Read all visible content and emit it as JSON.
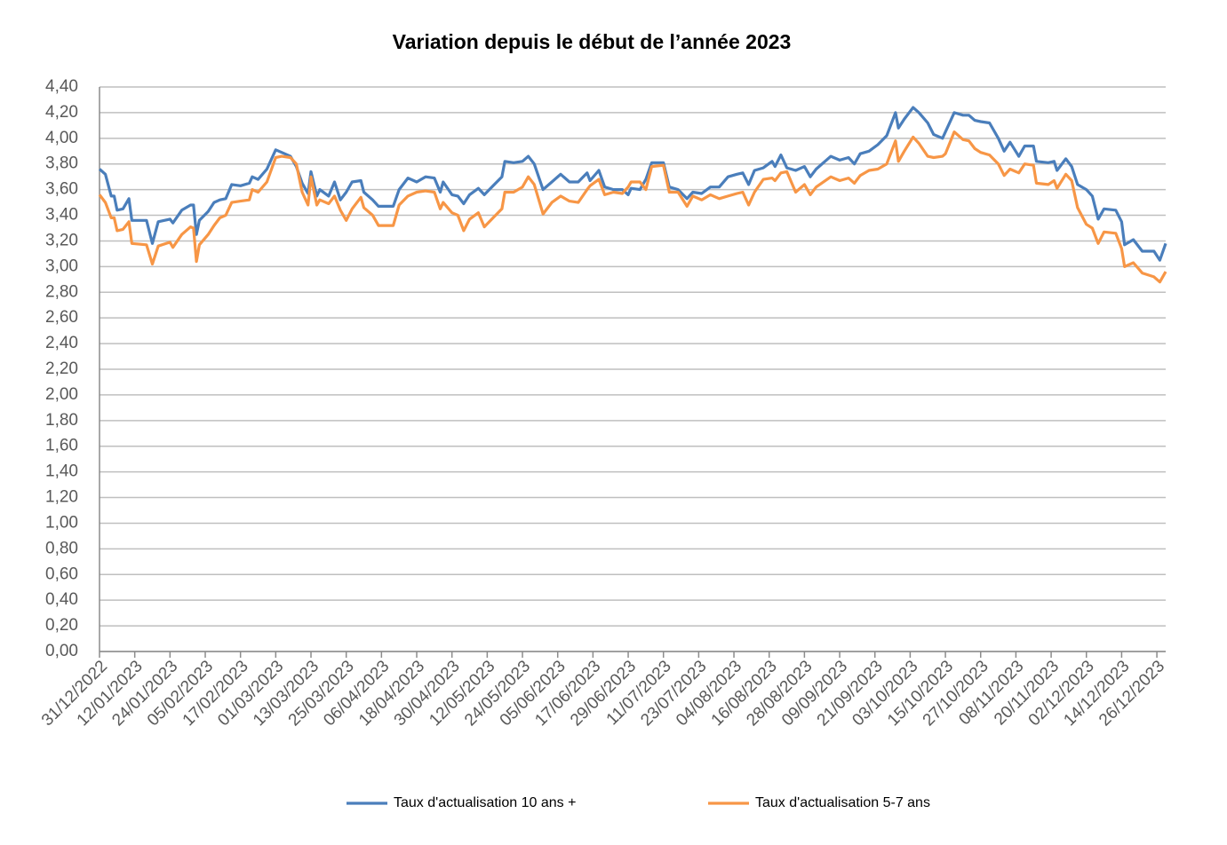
{
  "chart_data": {
    "type": "line",
    "title": "Variation depuis le début de l’année 2023",
    "x": [
      "31/12/2022",
      "02/01/2023",
      "04/01/2023",
      "05/01/2023",
      "06/01/2023",
      "08/01/2023",
      "10/01/2023",
      "11/01/2023",
      "16/01/2023",
      "18/01/2023",
      "20/01/2023",
      "24/01/2023",
      "25/01/2023",
      "28/01/2023",
      "31/01/2023",
      "01/02/2023",
      "02/02/2023",
      "03/02/2023",
      "06/02/2023",
      "08/02/2023",
      "10/02/2023",
      "12/02/2023",
      "14/02/2023",
      "17/02/2023",
      "20/02/2023",
      "21/02/2023",
      "23/02/2023",
      "26/02/2023",
      "01/03/2023",
      "03/03/2023",
      "06/03/2023",
      "08/03/2023",
      "10/03/2023",
      "12/03/2023",
      "13/03/2023",
      "15/03/2023",
      "16/03/2023",
      "19/03/2023",
      "21/03/2023",
      "23/03/2023",
      "25/03/2023",
      "27/03/2023",
      "30/03/2023",
      "31/03/2023",
      "03/04/2023",
      "05/04/2023",
      "10/04/2023",
      "12/04/2023",
      "15/04/2023",
      "18/04/2023",
      "21/04/2023",
      "24/04/2023",
      "26/04/2023",
      "27/04/2023",
      "30/04/2023",
      "02/05/2023",
      "04/05/2023",
      "06/05/2023",
      "09/05/2023",
      "11/05/2023",
      "14/05/2023",
      "17/05/2023",
      "18/05/2023",
      "21/05/2023",
      "24/05/2023",
      "26/05/2023",
      "28/05/2023",
      "31/05/2023",
      "03/06/2023",
      "06/06/2023",
      "09/06/2023",
      "12/06/2023",
      "15/06/2023",
      "16/06/2023",
      "19/06/2023",
      "21/06/2023",
      "24/06/2023",
      "27/06/2023",
      "29/06/2023",
      "30/06/2023",
      "03/07/2023",
      "05/07/2023",
      "07/07/2023",
      "11/07/2023",
      "13/07/2023",
      "16/07/2023",
      "19/07/2023",
      "21/07/2023",
      "24/07/2023",
      "27/07/2023",
      "30/07/2023",
      "02/08/2023",
      "05/08/2023",
      "07/08/2023",
      "09/08/2023",
      "11/08/2023",
      "14/08/2023",
      "17/08/2023",
      "18/08/2023",
      "20/08/2023",
      "22/08/2023",
      "25/08/2023",
      "28/08/2023",
      "30/08/2023",
      "01/09/2023",
      "06/09/2023",
      "09/09/2023",
      "12/09/2023",
      "14/09/2023",
      "16/09/2023",
      "19/09/2023",
      "22/09/2023",
      "25/09/2023",
      "28/09/2023",
      "29/09/2023",
      "01/10/2023",
      "04/10/2023",
      "06/10/2023",
      "09/10/2023",
      "11/10/2023",
      "14/10/2023",
      "15/10/2023",
      "18/10/2023",
      "21/10/2023",
      "23/10/2023",
      "25/10/2023",
      "27/10/2023",
      "30/10/2023",
      "02/11/2023",
      "04/11/2023",
      "06/11/2023",
      "09/11/2023",
      "11/11/2023",
      "14/11/2023",
      "15/11/2023",
      "19/11/2023",
      "21/11/2023",
      "22/11/2023",
      "25/11/2023",
      "27/11/2023",
      "29/11/2023",
      "02/12/2023",
      "04/12/2023",
      "06/12/2023",
      "08/12/2023",
      "12/12/2023",
      "14/12/2023",
      "15/12/2023",
      "18/12/2023",
      "21/12/2023",
      "25/12/2023",
      "27/12/2023",
      "29/12/2023"
    ],
    "series": [
      {
        "name": "Taux d'actualisation 10 ans +",
        "color": "#4a7ebb",
        "values": [
          3.76,
          3.72,
          3.55,
          3.55,
          3.44,
          3.45,
          3.53,
          3.36,
          3.36,
          3.18,
          3.35,
          3.37,
          3.34,
          3.44,
          3.48,
          3.48,
          3.25,
          3.36,
          3.43,
          3.5,
          3.52,
          3.53,
          3.64,
          3.63,
          3.65,
          3.7,
          3.68,
          3.76,
          3.91,
          3.89,
          3.86,
          3.78,
          3.65,
          3.57,
          3.74,
          3.55,
          3.6,
          3.55,
          3.66,
          3.52,
          3.58,
          3.66,
          3.67,
          3.58,
          3.52,
          3.47,
          3.47,
          3.6,
          3.69,
          3.66,
          3.7,
          3.69,
          3.58,
          3.66,
          3.56,
          3.55,
          3.49,
          3.56,
          3.61,
          3.56,
          3.63,
          3.7,
          3.82,
          3.81,
          3.82,
          3.86,
          3.8,
          3.6,
          3.66,
          3.72,
          3.66,
          3.66,
          3.73,
          3.67,
          3.75,
          3.62,
          3.6,
          3.6,
          3.56,
          3.61,
          3.6,
          3.68,
          3.81,
          3.81,
          3.62,
          3.6,
          3.53,
          3.58,
          3.57,
          3.62,
          3.62,
          3.7,
          3.72,
          3.73,
          3.64,
          3.75,
          3.77,
          3.82,
          3.78,
          3.87,
          3.77,
          3.75,
          3.78,
          3.7,
          3.76,
          3.86,
          3.83,
          3.85,
          3.8,
          3.88,
          3.9,
          3.95,
          4.02,
          4.2,
          4.08,
          4.15,
          4.24,
          4.2,
          4.12,
          4.03,
          4.0,
          4.05,
          4.2,
          4.18,
          4.18,
          4.14,
          4.13,
          4.12,
          4.0,
          3.9,
          3.97,
          3.86,
          3.94,
          3.94,
          3.82,
          3.81,
          3.82,
          3.75,
          3.84,
          3.78,
          3.64,
          3.6,
          3.55,
          3.37,
          3.45,
          3.44,
          3.35,
          3.17,
          3.21,
          3.12,
          3.12,
          3.05,
          3.18
        ]
      },
      {
        "name": "Taux d'actualisation 5-7 ans",
        "color": "#f79646",
        "values": [
          3.56,
          3.5,
          3.38,
          3.38,
          3.28,
          3.29,
          3.35,
          3.18,
          3.17,
          3.02,
          3.16,
          3.19,
          3.15,
          3.25,
          3.31,
          3.3,
          3.04,
          3.17,
          3.25,
          3.32,
          3.38,
          3.4,
          3.5,
          3.51,
          3.52,
          3.6,
          3.58,
          3.66,
          3.85,
          3.86,
          3.85,
          3.8,
          3.58,
          3.48,
          3.7,
          3.48,
          3.52,
          3.49,
          3.55,
          3.44,
          3.36,
          3.45,
          3.54,
          3.46,
          3.4,
          3.32,
          3.32,
          3.48,
          3.55,
          3.58,
          3.59,
          3.58,
          3.45,
          3.5,
          3.42,
          3.4,
          3.28,
          3.37,
          3.42,
          3.31,
          3.38,
          3.45,
          3.58,
          3.58,
          3.62,
          3.7,
          3.64,
          3.41,
          3.5,
          3.55,
          3.51,
          3.5,
          3.6,
          3.63,
          3.68,
          3.56,
          3.58,
          3.57,
          3.62,
          3.66,
          3.66,
          3.6,
          3.78,
          3.79,
          3.58,
          3.58,
          3.47,
          3.55,
          3.52,
          3.56,
          3.53,
          3.55,
          3.57,
          3.58,
          3.48,
          3.58,
          3.68,
          3.69,
          3.67,
          3.73,
          3.74,
          3.58,
          3.64,
          3.56,
          3.62,
          3.7,
          3.67,
          3.69,
          3.65,
          3.71,
          3.75,
          3.76,
          3.8,
          3.98,
          3.82,
          3.9,
          4.01,
          3.96,
          3.86,
          3.85,
          3.86,
          3.88,
          4.05,
          3.99,
          3.98,
          3.92,
          3.89,
          3.87,
          3.8,
          3.71,
          3.76,
          3.73,
          3.8,
          3.79,
          3.65,
          3.64,
          3.67,
          3.61,
          3.72,
          3.67,
          3.46,
          3.33,
          3.3,
          3.18,
          3.27,
          3.26,
          3.14,
          3.0,
          3.03,
          2.95,
          2.92,
          2.88,
          2.96
        ]
      }
    ],
    "xlim": [
      "31/12/2022",
      "29/12/2023"
    ],
    "xticks": [
      "31/12/2022",
      "12/01/2023",
      "24/01/2023",
      "05/02/2023",
      "17/02/2023",
      "01/03/2023",
      "13/03/2023",
      "25/03/2023",
      "06/04/2023",
      "18/04/2023",
      "30/04/2023",
      "12/05/2023",
      "24/05/2023",
      "05/06/2023",
      "17/06/2023",
      "29/06/2023",
      "11/07/2023",
      "23/07/2023",
      "04/08/2023",
      "16/08/2023",
      "28/08/2023",
      "09/09/2023",
      "21/09/2023",
      "03/10/2023",
      "15/10/2023",
      "27/10/2023",
      "08/11/2023",
      "20/11/2023",
      "02/12/2023",
      "14/12/2023",
      "26/12/2023"
    ],
    "ylim": [
      0,
      4.4
    ],
    "yticks": [
      {
        "value": 0,
        "label": "0,00"
      },
      {
        "value": 0.2,
        "label": "0,20"
      },
      {
        "value": 0.4,
        "label": "0,40"
      },
      {
        "value": 0.6,
        "label": "0,60"
      },
      {
        "value": 0.8,
        "label": "0,80"
      },
      {
        "value": 1,
        "label": "1,00"
      },
      {
        "value": 1.2,
        "label": "1,20"
      },
      {
        "value": 1.4,
        "label": "1,40"
      },
      {
        "value": 1.6,
        "label": "1,60"
      },
      {
        "value": 1.8,
        "label": "1,80"
      },
      {
        "value": 2,
        "label": "2,00"
      },
      {
        "value": 2.2,
        "label": "2,20"
      },
      {
        "value": 2.4,
        "label": "2,40"
      },
      {
        "value": 2.6,
        "label": "2,60"
      },
      {
        "value": 2.8,
        "label": "2,80"
      },
      {
        "value": 3,
        "label": "3,00"
      },
      {
        "value": 3.2,
        "label": "3,20"
      },
      {
        "value": 3.4,
        "label": "3,40"
      },
      {
        "value": 3.6,
        "label": "3,60"
      },
      {
        "value": 3.8,
        "label": "3,80"
      },
      {
        "value": 4,
        "label": "4,00"
      },
      {
        "value": 4.2,
        "label": "4,20"
      },
      {
        "value": 4.4,
        "label": "4,40"
      }
    ],
    "grid": true,
    "legend": "bottom"
  }
}
